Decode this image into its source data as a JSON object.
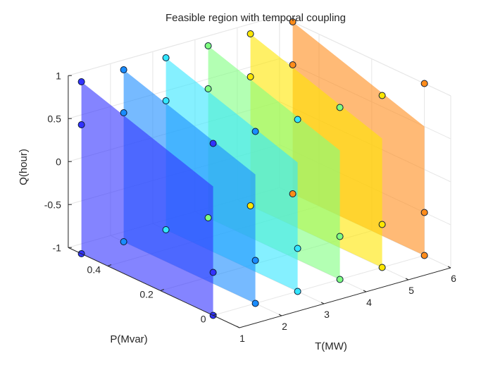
{
  "chart_data": {
    "type": "surface3d",
    "title": "Feasible region with temporal coupling",
    "xlabel": "T(MW)",
    "ylabel": "P(Mvar)",
    "zlabel": "Q(hour)",
    "x_ticks": [
      "1",
      "2",
      "3",
      "4",
      "5",
      "6"
    ],
    "y_ticks": [
      "0",
      "0.2",
      "0.4"
    ],
    "z_ticks": [
      "-1",
      "-0.5",
      "0",
      "0.5",
      "1"
    ],
    "xlim": [
      1,
      6
    ],
    "ylim": [
      -0.1,
      0.55
    ],
    "zlim": [
      -1,
      1
    ],
    "grid": true,
    "series": [
      {
        "t": 1,
        "color": "#3232ff",
        "vertices": [
          [
            0.5,
            0.5,
            1
          ],
          [
            0.5,
            0.5,
            -1
          ],
          [
            0.0,
            0.0,
            -1
          ],
          [
            0.0,
            0.0,
            1
          ],
          [
            0.5,
            0.0,
            0.5
          ],
          [
            0.0,
            0.5,
            -0.5
          ]
        ]
      },
      {
        "t": 2,
        "color": "#1a8cff",
        "vertices": [
          [
            0.5,
            0.5,
            1
          ],
          [
            0.5,
            0.5,
            -1
          ],
          [
            0.0,
            0.0,
            -1
          ],
          [
            0.0,
            0.0,
            1
          ],
          [
            0.5,
            0.0,
            0.5
          ],
          [
            0.0,
            0.5,
            -0.5
          ]
        ]
      },
      {
        "t": 3,
        "color": "#33e6ff",
        "vertices": [
          [
            0.5,
            0.5,
            1
          ],
          [
            0.5,
            0.5,
            -1
          ],
          [
            0.0,
            0.0,
            -1
          ],
          [
            0.0,
            0.0,
            1
          ],
          [
            0.5,
            0.0,
            0.5
          ],
          [
            0.0,
            0.5,
            -0.5
          ]
        ]
      },
      {
        "t": 4,
        "color": "#80ff80",
        "vertices": [
          [
            0.5,
            0.5,
            1
          ],
          [
            0.5,
            0.5,
            -1
          ],
          [
            0.0,
            0.0,
            -1
          ],
          [
            0.0,
            0.0,
            1
          ],
          [
            0.5,
            0.0,
            0.5
          ],
          [
            0.0,
            0.5,
            -0.5
          ]
        ]
      },
      {
        "t": 5,
        "color": "#ffe600",
        "vertices": [
          [
            0.5,
            0.5,
            1
          ],
          [
            0.5,
            0.5,
            -1
          ],
          [
            0.0,
            0.0,
            -1
          ],
          [
            0.0,
            0.0,
            1
          ],
          [
            0.5,
            0.0,
            0.5
          ],
          [
            0.0,
            0.5,
            -0.5
          ]
        ]
      },
      {
        "t": 6,
        "color": "#ff8c1a",
        "vertices": [
          [
            0.5,
            0.5,
            1
          ],
          [
            0.5,
            0.5,
            -1
          ],
          [
            0.0,
            0.0,
            -1
          ],
          [
            0.0,
            0.0,
            1
          ],
          [
            0.5,
            0.0,
            0.5
          ],
          [
            0.0,
            0.5,
            -0.5
          ]
        ]
      }
    ]
  }
}
